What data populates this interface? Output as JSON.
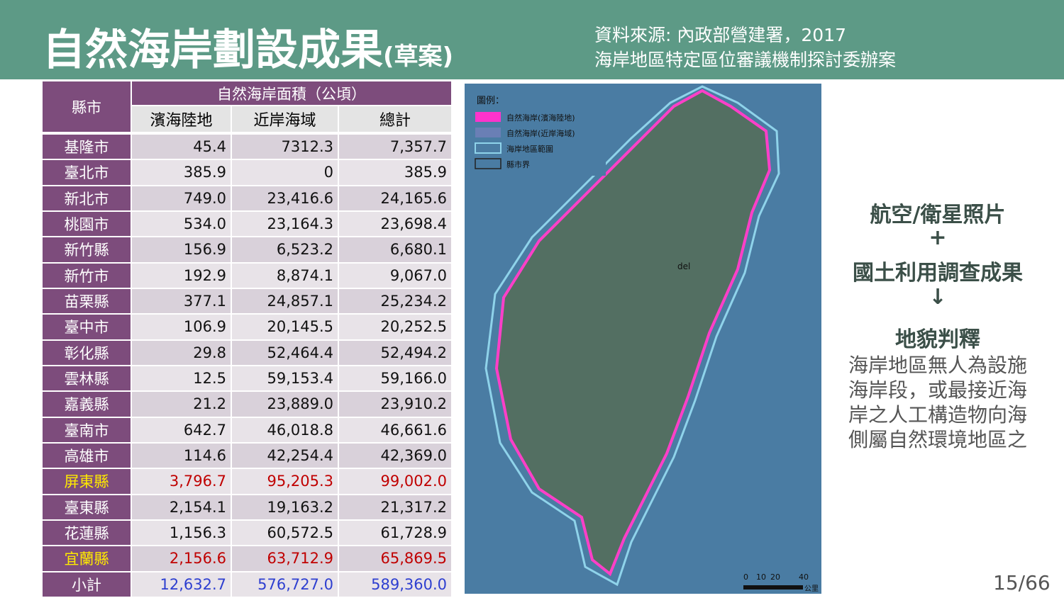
{
  "header": {
    "title": "自然海岸劃設成果",
    "title_suffix": "(草案)",
    "source": [
      "資料來源: 內政部營建署，2017",
      "海岸地區特定區位審議機制探討委辦案"
    ]
  },
  "table": {
    "row_header": "縣市",
    "group_header": "自然海岸面積（公頃）",
    "columns": [
      "濱海陸地",
      "近岸海域",
      "總計"
    ],
    "rows": [
      {
        "cells": [
          "基隆市",
          "45.4",
          "7312.3",
          "7,357.7"
        ]
      },
      {
        "cells": [
          "臺北市",
          "385.9",
          "0",
          "385.9"
        ]
      },
      {
        "cells": [
          "新北市",
          "749.0",
          "23,416.6",
          "24,165.6"
        ]
      },
      {
        "cells": [
          "桃園市",
          "534.0",
          "23,164.3",
          "23,698.4"
        ]
      },
      {
        "cells": [
          "新竹縣",
          "156.9",
          "6,523.2",
          "6,680.1"
        ]
      },
      {
        "cells": [
          "新竹市",
          "192.9",
          "8,874.1",
          "9,067.0"
        ]
      },
      {
        "cells": [
          "苗栗縣",
          "377.1",
          "24,857.1",
          "25,234.2"
        ]
      },
      {
        "cells": [
          "臺中市",
          "106.9",
          "20,145.5",
          "20,252.5"
        ]
      },
      {
        "cells": [
          "彰化縣",
          "29.8",
          "52,464.4",
          "52,494.2"
        ]
      },
      {
        "cells": [
          "雲林縣",
          "12.5",
          "59,153.4",
          "59,166.0"
        ]
      },
      {
        "cells": [
          "嘉義縣",
          "21.2",
          "23,889.0",
          "23,910.2"
        ]
      },
      {
        "cells": [
          "臺南市",
          "642.7",
          "46,018.8",
          "46,661.6"
        ]
      },
      {
        "cells": [
          "高雄市",
          "114.6",
          "42,254.4",
          "42,369.0"
        ]
      },
      {
        "cells": [
          "屏東縣",
          "3,796.7",
          "95,205.3",
          "99,002.0"
        ],
        "style": "highlight"
      },
      {
        "cells": [
          "臺東縣",
          "2,154.1",
          "19,163.2",
          "21,317.2"
        ]
      },
      {
        "cells": [
          "花蓮縣",
          "1,156.3",
          "60,572.5",
          "61,728.9"
        ]
      },
      {
        "cells": [
          "宜蘭縣",
          "2,156.6",
          "63,712.9",
          "65,869.5"
        ],
        "style": "highlight"
      },
      {
        "cells": [
          "小計",
          "12,632.7",
          "576,727.0",
          "589,360.0"
        ],
        "style": "total"
      }
    ]
  },
  "map": {
    "legend_title": "圖例：",
    "legend": [
      "自然海岸(濱海陸地)",
      "自然海岸(近岸海域)",
      "海岸地區範圍",
      "縣市界"
    ],
    "scale": [
      "0",
      "10",
      "20",
      "40",
      "公里"
    ],
    "label": "del"
  },
  "side": {
    "lines": [
      "航空/衛星照片",
      "+",
      "國土利用調查成果",
      "↓",
      "地貌判釋"
    ],
    "description": [
      "海岸地區無人為設施",
      "海岸段，或最接近海",
      "岸之人工構造物向海",
      "側屬自然環境地區之"
    ]
  },
  "page_number": "15/66"
}
